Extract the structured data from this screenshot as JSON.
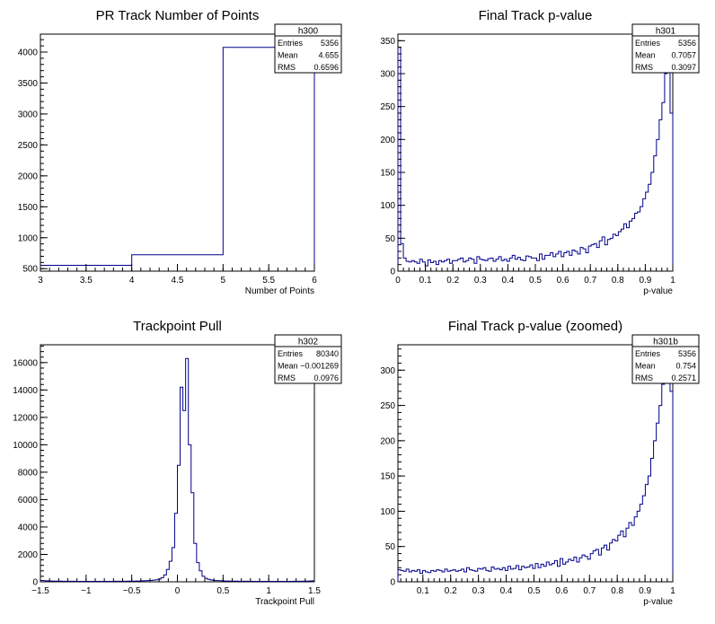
{
  "colors": {
    "histogram_line": "#00008b",
    "frame": "#000000",
    "background": "#ffffff"
  },
  "chart_data": [
    {
      "type": "histogram",
      "title": "PR Track Number of Points",
      "xlabel": "Number of Points",
      "ylabel": "",
      "xlim": [
        3,
        6
      ],
      "ylim": [
        460,
        4290
      ],
      "xticks": [
        3,
        3.5,
        4,
        4.5,
        5,
        5.5,
        6
      ],
      "xtick_labels": [
        "3",
        "3.5",
        "4",
        "4.5",
        "5",
        "5.5",
        "6"
      ],
      "yticks": [
        500,
        1000,
        1500,
        2000,
        2500,
        3000,
        3500,
        4000
      ],
      "ytick_labels": [
        "500",
        "1000",
        "1500",
        "2000",
        "2500",
        "3000",
        "3500",
        "4000"
      ],
      "bin_edges": [
        3,
        4,
        5,
        6
      ],
      "values": [
        555,
        725,
        4076
      ],
      "stats": {
        "name": "h300",
        "rows": [
          {
            "label": "Entries",
            "value": "5356"
          },
          {
            "label": "Mean",
            "value": "4.655"
          },
          {
            "label": "RMS",
            "value": "0.6596"
          }
        ]
      }
    },
    {
      "type": "histogram",
      "title": "Final Track p-value",
      "xlabel": "p-value",
      "ylabel": "",
      "xlim": [
        0,
        1
      ],
      "ylim": [
        0,
        360
      ],
      "xticks": [
        0,
        0.1,
        0.2,
        0.3,
        0.4,
        0.5,
        0.6,
        0.7,
        0.8,
        0.9,
        1
      ],
      "xtick_labels": [
        "0",
        "0.1",
        "0.2",
        "0.3",
        "0.4",
        "0.5",
        "0.6",
        "0.7",
        "0.8",
        "0.9",
        "1"
      ],
      "yticks": [
        0,
        50,
        100,
        150,
        200,
        250,
        300,
        350
      ],
      "ytick_labels": [
        "0",
        "50",
        "100",
        "150",
        "200",
        "250",
        "300",
        "350"
      ],
      "bin_edges_range": [
        0,
        1
      ],
      "values": [
        340,
        42,
        20,
        15,
        14,
        16,
        14,
        12,
        18,
        14,
        8,
        17,
        13,
        15,
        10,
        16,
        14,
        16,
        18,
        12,
        16,
        16,
        18,
        20,
        14,
        16,
        20,
        18,
        12,
        22,
        18,
        17,
        16,
        19,
        20,
        15,
        18,
        22,
        16,
        18,
        15,
        20,
        24,
        18,
        21,
        17,
        16,
        23,
        22,
        20,
        20,
        16,
        26,
        18,
        24,
        24,
        28,
        22,
        26,
        30,
        22,
        28,
        30,
        24,
        32,
        30,
        26,
        36,
        34,
        28,
        38,
        40,
        42,
        36,
        46,
        52,
        40,
        48,
        50,
        56,
        54,
        60,
        64,
        72,
        66,
        76,
        80,
        88,
        90,
        98,
        110,
        120,
        132,
        150,
        175,
        200,
        230,
        256,
        300,
        330,
        240
      ],
      "stats": {
        "name": "h301",
        "rows": [
          {
            "label": "Entries",
            "value": "5356"
          },
          {
            "label": "Mean",
            "value": "0.7057"
          },
          {
            "label": "RMS",
            "value": "0.3097"
          }
        ]
      }
    },
    {
      "type": "histogram",
      "title": "Trackpoint Pull",
      "xlabel": "Trackpoint Pull",
      "ylabel": "",
      "xlim": [
        -1.5,
        1.5
      ],
      "ylim": [
        0,
        17300
      ],
      "xticks": [
        -1.5,
        -1,
        -0.5,
        0,
        0.5,
        1,
        1.5
      ],
      "xtick_labels": [
        "−1.5",
        "−1",
        "−0.5",
        "0",
        "0.5",
        "1",
        "1.5"
      ],
      "yticks": [
        0,
        2000,
        4000,
        6000,
        8000,
        10000,
        12000,
        14000,
        16000
      ],
      "ytick_labels": [
        "0",
        "2000",
        "4000",
        "6000",
        "8000",
        "10000",
        "12000",
        "14000",
        "16000"
      ],
      "bin_edges_range": [
        -1.5,
        1.5
      ],
      "values": [
        100,
        80,
        70,
        60,
        60,
        50,
        50,
        50,
        40,
        40,
        40,
        40,
        40,
        30,
        30,
        30,
        30,
        30,
        30,
        30,
        30,
        30,
        30,
        30,
        30,
        30,
        30,
        40,
        40,
        40,
        40,
        40,
        50,
        50,
        50,
        60,
        60,
        70,
        80,
        90,
        100,
        120,
        150,
        200,
        300,
        500,
        900,
        1500,
        2500,
        5000,
        8500,
        14200,
        12500,
        16300,
        10000,
        6500,
        2800,
        1400,
        800,
        400,
        250,
        180,
        130,
        100,
        90,
        80,
        70,
        60,
        60,
        50,
        50,
        50,
        40,
        40,
        40,
        40,
        40,
        30,
        30,
        30,
        30,
        30,
        30,
        30,
        30,
        30,
        30,
        30,
        30,
        30,
        30,
        30,
        40,
        40,
        40,
        40,
        50,
        50,
        60,
        70
      ],
      "stats": {
        "name": "h302",
        "rows": [
          {
            "label": "Entries",
            "value": "80340"
          },
          {
            "label": "Mean",
            "value": "−0.001269"
          },
          {
            "label": "RMS",
            "value": "0.0976"
          }
        ]
      }
    },
    {
      "type": "histogram",
      "title": "Final Track p-value (zoomed)",
      "xlabel": "p-value",
      "ylabel": "",
      "xlim": [
        0.01,
        1
      ],
      "ylim": [
        0,
        336
      ],
      "xticks": [
        0.1,
        0.2,
        0.3,
        0.4,
        0.5,
        0.6,
        0.7,
        0.8,
        0.9,
        1
      ],
      "xtick_labels": [
        "0.1",
        "0.2",
        "0.3",
        "0.4",
        "0.5",
        "0.6",
        "0.7",
        "0.8",
        "0.9",
        "1"
      ],
      "yticks": [
        0,
        50,
        100,
        150,
        200,
        250,
        300
      ],
      "ytick_labels": [
        "0",
        "50",
        "100",
        "150",
        "200",
        "250",
        "300"
      ],
      "bin_edges_range": [
        0.01,
        1
      ],
      "values": [
        17,
        16,
        15,
        18,
        14,
        16,
        15,
        17,
        12,
        16,
        14,
        13,
        16,
        15,
        17,
        16,
        14,
        18,
        15,
        16,
        17,
        15,
        16,
        18,
        14,
        20,
        17,
        16,
        15,
        19,
        18,
        20,
        16,
        15,
        21,
        18,
        19,
        17,
        20,
        16,
        22,
        18,
        19,
        23,
        17,
        22,
        20,
        21,
        24,
        19,
        26,
        20,
        25,
        22,
        28,
        24,
        26,
        30,
        22,
        33,
        25,
        28,
        32,
        30,
        35,
        28,
        34,
        38,
        36,
        32,
        40,
        44,
        46,
        38,
        48,
        52,
        45,
        55,
        60,
        58,
        66,
        72,
        64,
        76,
        84,
        80,
        92,
        100,
        110,
        122,
        138,
        150,
        175,
        200,
        225,
        250,
        280,
        290,
        320,
        270
      ],
      "stats": {
        "name": "h301b",
        "rows": [
          {
            "label": "Entries",
            "value": "5356"
          },
          {
            "label": "Mean",
            "value": "0.754"
          },
          {
            "label": "RMS",
            "value": "0.2571"
          }
        ]
      }
    }
  ]
}
